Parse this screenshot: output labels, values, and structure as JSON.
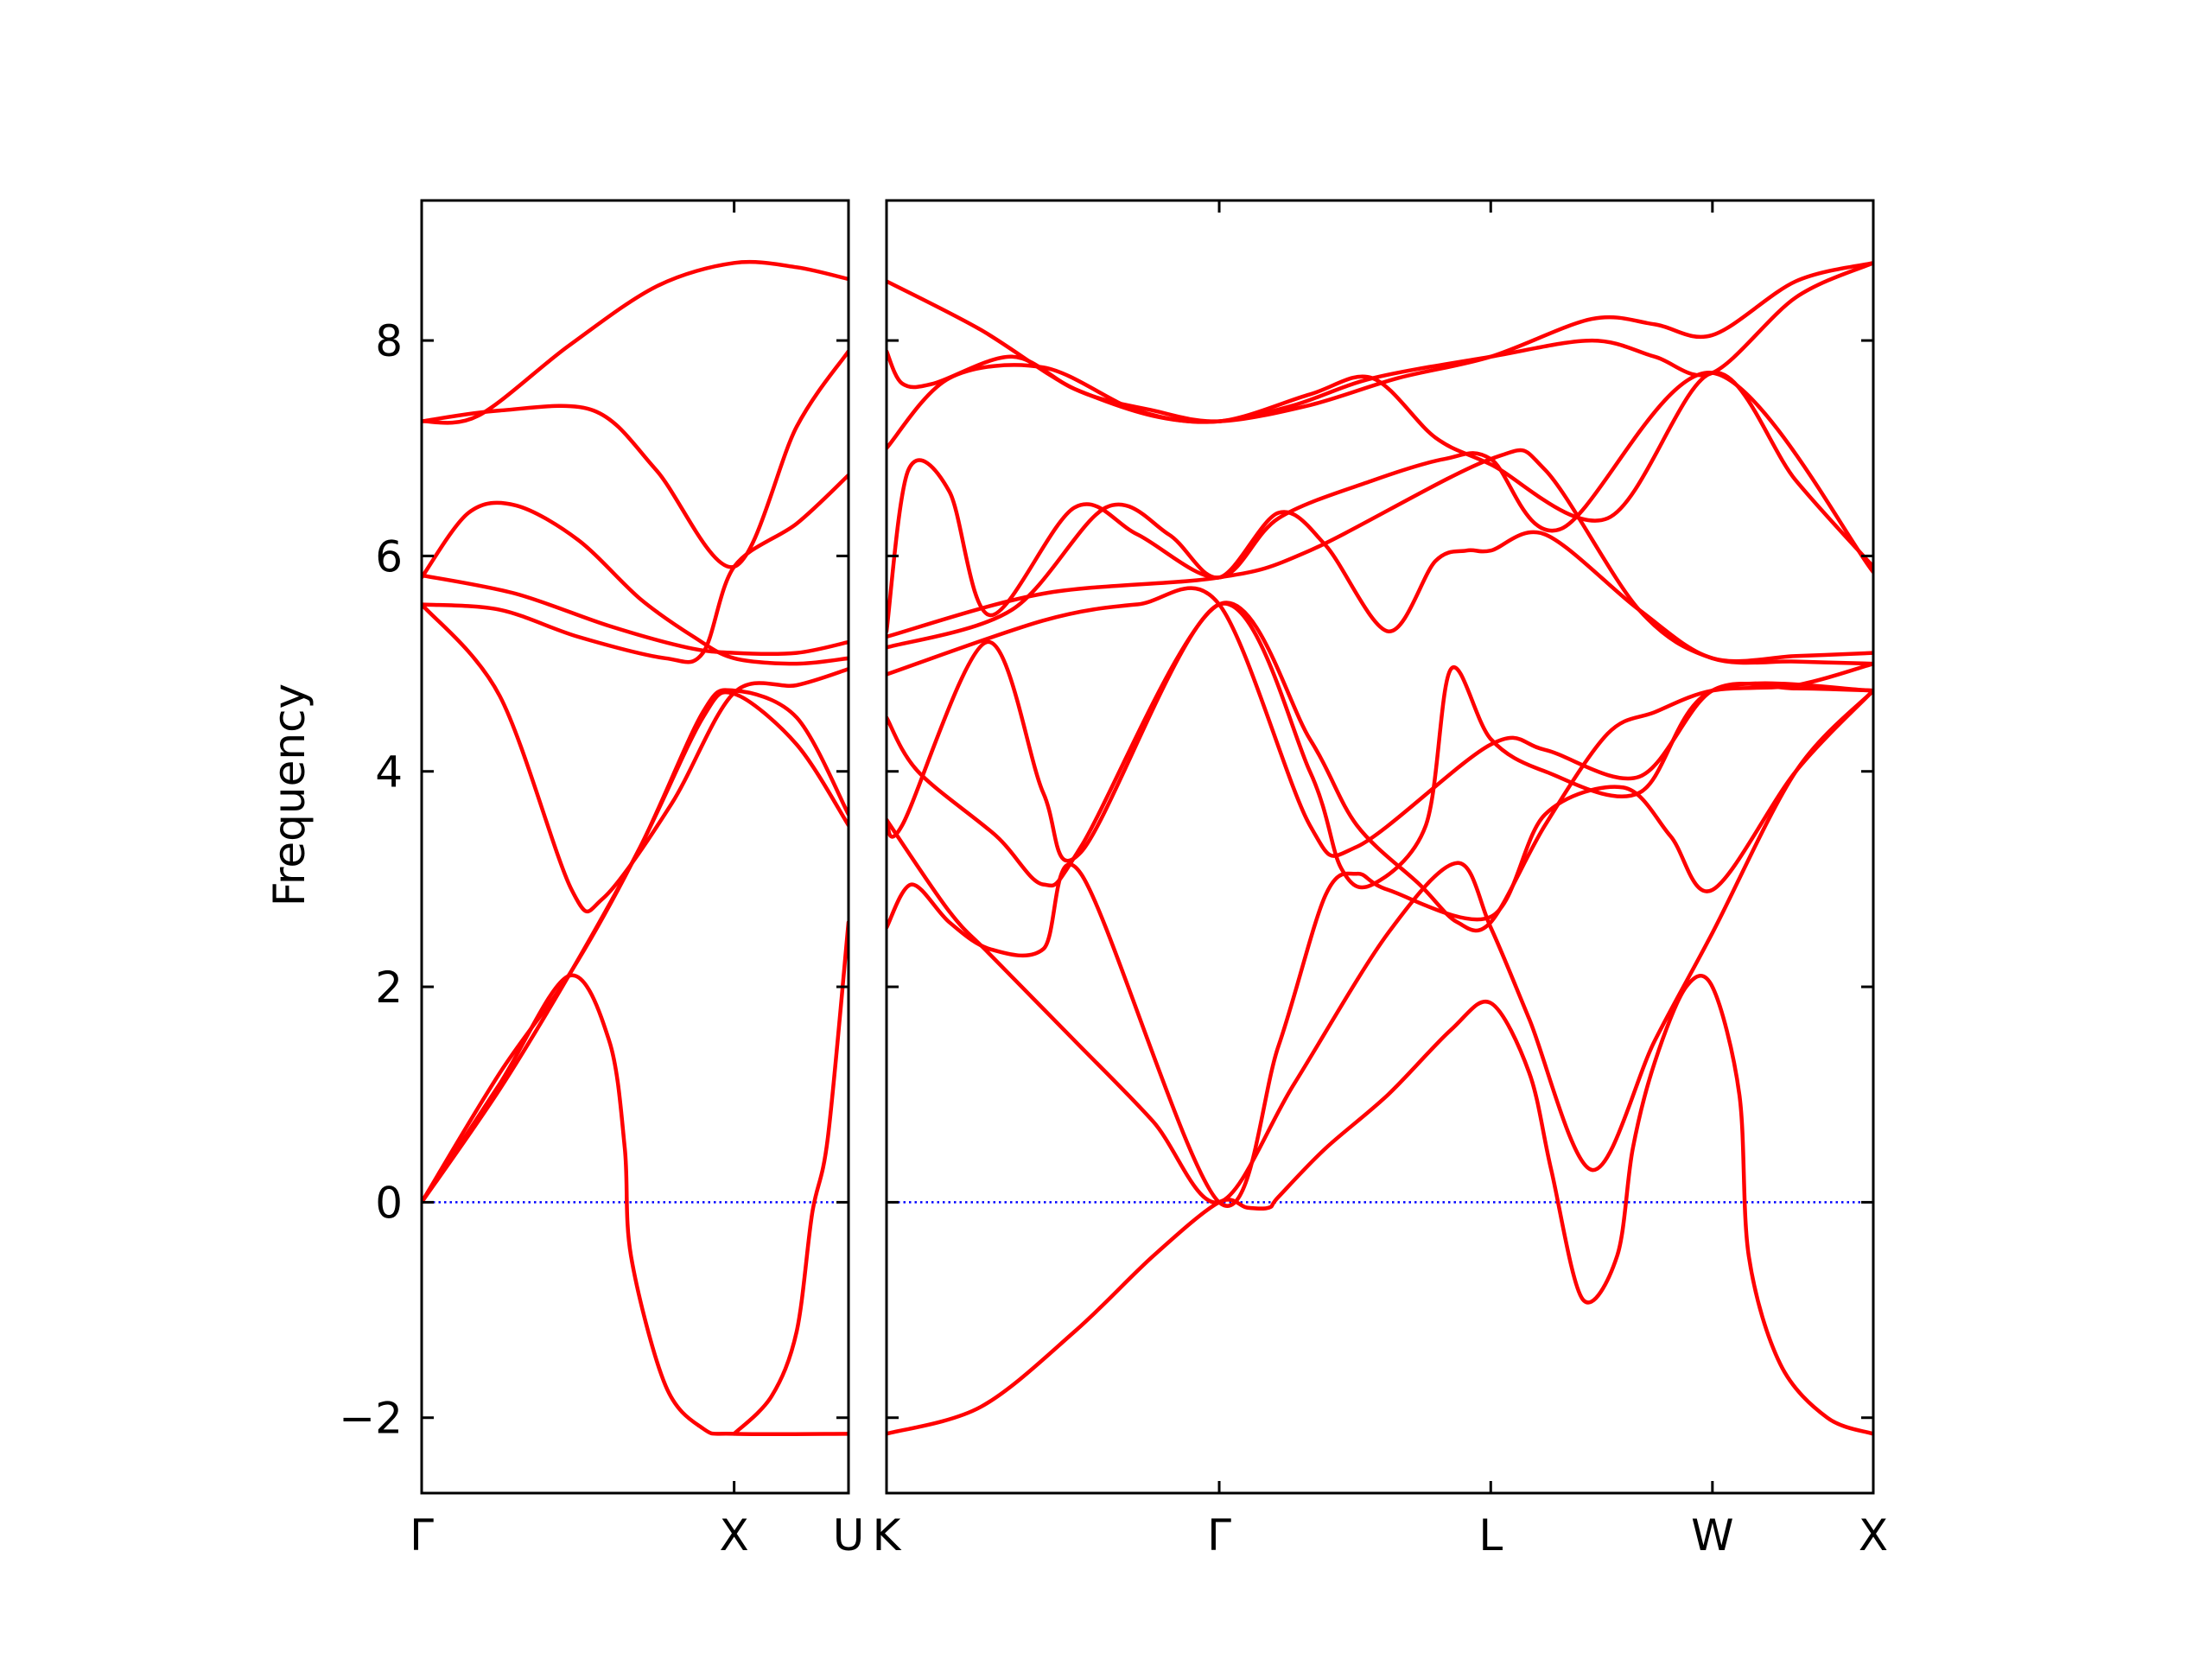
{
  "chart_data": {
    "type": "line",
    "title": "",
    "ylabel": "Frequency",
    "xlabel": "",
    "ylim": [
      -2.7,
      9.3
    ],
    "yticks": [
      -2,
      0,
      2,
      4,
      6,
      8
    ],
    "ytick_labels": [
      "−2",
      "0",
      "2",
      "4",
      "6",
      "8"
    ],
    "grid": false,
    "legend": "none",
    "colors": {
      "bands": "#ff0000",
      "zero_line": "#0000ff",
      "axes": "#000000"
    },
    "zero_line": {
      "y": 0,
      "style": "dotted"
    },
    "panels": [
      {
        "name": "left",
        "x_range": [
          0,
          1.366
        ],
        "ticks": [
          {
            "x": 0,
            "label": "Γ"
          },
          {
            "x": 1.0,
            "label": "X"
          },
          {
            "x": 1.366,
            "label": "U"
          }
        ],
        "series": [
          {
            "x": [
              0,
              0.18,
              0.47,
              0.75,
              1.0,
              1.2,
              1.366
            ],
            "y": [
              7.25,
              7.3,
              7.95,
              8.5,
              8.72,
              8.68,
              8.57
            ]
          },
          {
            "x": [
              0,
              0.25,
              0.55,
              0.75,
              1.0,
              1.2,
              1.366
            ],
            "y": [
              7.25,
              7.35,
              7.35,
              6.8,
              5.9,
              7.2,
              7.9
            ]
          },
          {
            "x": [
              0,
              0.15,
              0.3,
              0.5,
              0.7,
              0.87,
              1.0,
              1.2,
              1.366
            ],
            "y": [
              5.8,
              6.4,
              6.47,
              6.15,
              5.6,
              5.25,
              5.05,
              5.0,
              5.05
            ]
          },
          {
            "x": [
              0,
              0.3,
              0.6,
              0.85,
              1.0,
              1.2,
              1.366
            ],
            "y": [
              5.82,
              5.65,
              5.35,
              5.15,
              5.1,
              5.1,
              5.2
            ]
          },
          {
            "x": [
              0,
              0.25,
              0.5,
              0.78,
              0.9,
              1.0,
              1.2,
              1.366
            ],
            "y": [
              5.55,
              5.5,
              5.25,
              5.05,
              5.1,
              5.9,
              6.3,
              6.75
            ]
          },
          {
            "x": [
              0,
              0.25,
              0.48,
              0.58,
              0.8,
              1.0,
              1.2,
              1.366
            ],
            "y": [
              5.55,
              4.7,
              2.9,
              2.82,
              3.7,
              4.73,
              4.8,
              4.95
            ]
          },
          {
            "x": [
              0,
              0.25,
              0.48,
              0.7,
              0.9,
              1.0,
              1.2,
              1.366
            ],
            "y": [
              0,
              1.2,
              2.15,
              3.3,
              4.55,
              4.75,
              4.5,
              3.6
            ]
          },
          {
            "x": [
              0,
              0.25,
              0.48,
              0.7,
              0.9,
              1.0,
              1.2,
              1.366
            ],
            "y": [
              0,
              1.05,
              2.15,
              3.3,
              4.5,
              4.72,
              4.25,
              3.5
            ]
          },
          {
            "x": [
              0,
              0.25,
              0.47,
              0.6,
              0.65,
              0.67,
              0.78,
              0.9,
              1.0,
              1.366
            ],
            "y": [
              0,
              1.1,
              2.1,
              1.5,
              0.5,
              -0.5,
              -1.7,
              -2.1,
              -2.15,
              -2.15
            ]
          },
          {
            "x": [
              1.0,
              1.12,
              1.2,
              1.25,
              1.3,
              1.366
            ],
            "y": [
              -2.15,
              -1.8,
              -1.2,
              -0.1,
              0.6,
              2.6
            ]
          }
        ]
      },
      {
        "name": "right",
        "x_range": [
          0,
          3.147
        ],
        "ticks": [
          {
            "x": 0,
            "label": "K"
          },
          {
            "x": 1.061,
            "label": "Γ"
          },
          {
            "x": 1.927,
            "label": "L"
          },
          {
            "x": 2.634,
            "label": "W"
          },
          {
            "x": 3.147,
            "label": "X"
          }
        ],
        "series": [
          {
            "x": [
              0,
              0.3,
              0.6,
              0.85,
              1.061,
              1.35,
              1.63,
              1.927,
              2.25,
              2.45,
              2.634,
              2.9,
              3.147
            ],
            "y": [
              8.55,
              8.1,
              7.55,
              7.35,
              7.25,
              7.4,
              7.65,
              7.85,
              8.2,
              8.15,
              8.05,
              8.55,
              8.72
            ]
          },
          {
            "x": [
              0,
              0.05,
              0.15,
              0.4,
              0.6,
              0.85,
              1.061,
              1.3,
              1.55,
              1.927,
              2.25,
              2.45,
              2.634,
              2.9,
              3.147
            ],
            "y": [
              7.9,
              7.6,
              7.6,
              7.85,
              7.55,
              7.3,
              7.25,
              7.4,
              7.65,
              7.85,
              8.0,
              7.85,
              7.7,
              8.4,
              8.72
            ]
          },
          {
            "x": [
              0,
              0.2,
              0.5,
              0.8,
              1.061,
              1.35,
              1.55,
              1.75,
              1.927,
              2.3,
              2.634,
              2.9,
              3.147
            ],
            "y": [
              7.0,
              7.65,
              7.75,
              7.35,
              7.25,
              7.5,
              7.65,
              7.1,
              6.85,
              6.35,
              7.7,
              6.7,
              5.9
            ]
          },
          {
            "x": [
              0,
              0.07,
              0.2,
              0.33,
              0.6,
              0.8,
              1.061,
              1.25,
              1.55,
              1.78,
              1.927,
              2.15,
              2.634,
              3.147
            ],
            "y": [
              5.3,
              6.8,
              6.6,
              5.45,
              6.45,
              6.2,
              5.8,
              6.35,
              6.7,
              6.9,
              6.9,
              6.25,
              7.7,
              5.85
            ]
          },
          {
            "x": [
              0,
              0.4,
              0.7,
              0.9,
              1.061,
              1.25,
              1.4,
              1.6,
              1.75,
              1.85,
              1.927,
              2.1,
              2.4,
              2.634,
              2.9,
              3.147
            ],
            "y": [
              5.15,
              5.5,
              6.45,
              6.2,
              5.8,
              6.4,
              6.1,
              5.3,
              5.95,
              6.05,
              6.05,
              6.2,
              5.5,
              5.05,
              5.07,
              5.1
            ]
          },
          {
            "x": [
              0,
              0.5,
              1.061,
              1.35,
              1.927,
              2.1,
              2.4,
              2.634,
              2.9,
              3.147
            ],
            "y": [
              5.25,
              5.65,
              5.8,
              6.05,
              6.9,
              6.8,
              5.5,
              5.05,
              5.02,
              5.0
            ]
          },
          {
            "x": [
              0,
              0.5,
              0.8,
              1.061,
              1.35,
              1.5,
              1.927,
              2.1,
              2.4,
              2.634,
              2.9,
              3.147
            ],
            "y": [
              4.9,
              5.4,
              5.55,
              5.55,
              3.5,
              3.3,
              4.25,
              4.2,
              3.95,
              4.75,
              4.77,
              4.75
            ]
          },
          {
            "x": [
              0,
              0.05,
              0.32,
              0.5,
              0.62,
              1.061,
              1.35,
              1.45,
              1.55,
              1.72,
              1.8,
              1.927,
              2.1,
              2.4,
              2.634,
              3.147
            ],
            "y": [
              3.55,
              3.5,
              5.2,
              3.8,
              3.25,
              5.55,
              4.0,
              3.1,
              2.95,
              3.5,
              4.95,
              4.3,
              4.0,
              3.8,
              4.75,
              4.75
            ]
          },
          {
            "x": [
              0,
              0.1,
              0.35,
              0.5,
              0.62,
              1.061,
              1.35,
              1.5,
              1.7,
              1.82,
              1.927,
              2.1,
              2.3,
              2.45,
              2.634,
              2.9,
              3.147
            ],
            "y": [
              4.5,
              4.0,
              3.4,
              2.95,
              3.3,
              5.55,
              4.3,
              3.5,
              2.95,
              2.6,
              2.6,
              3.5,
              4.35,
              4.55,
              4.75,
              4.8,
              5.0
            ]
          },
          {
            "x": [
              0,
              0.08,
              0.2,
              0.33,
              0.5,
              0.62,
              1.061,
              1.25,
              1.4,
              1.5,
              1.6,
              1.927,
              2.1,
              2.35,
              2.5,
              2.634,
              2.9,
              3.147
            ],
            "y": [
              2.55,
              2.95,
              2.6,
              2.35,
              2.35,
              3.05,
              0.0,
              1.45,
              2.85,
              3.05,
              2.9,
              2.65,
              3.6,
              3.85,
              3.4,
              2.9,
              4.0,
              4.75
            ]
          },
          {
            "x": [
              0,
              0.2,
              0.33,
              0.6,
              0.85,
              1.061,
              1.3,
              1.6,
              1.82,
              1.927,
              2.05,
              2.25,
              2.45,
              2.634,
              2.9,
              3.147
            ],
            "y": [
              3.55,
              2.7,
              2.3,
              1.5,
              0.75,
              0.0,
              1.1,
              2.5,
              3.15,
              2.55,
              1.7,
              0.3,
              1.5,
              2.5,
              4.0,
              4.75
            ]
          },
          {
            "x": [
              0,
              0.3,
              0.6,
              0.85,
              1.061,
              1.15,
              1.22,
              1.25,
              1.4,
              1.6,
              1.8,
              1.927,
              2.05,
              2.12,
              2.22,
              2.33,
              2.38,
              2.45,
              2.55,
              2.634,
              2.72,
              2.75,
              2.85,
              3.0,
              3.147
            ],
            "y": [
              -2.15,
              -1.9,
              -1.2,
              -0.5,
              0.0,
              -0.05,
              -0.05,
              0.05,
              0.5,
              1.0,
              1.6,
              1.85,
              1.2,
              0.3,
              -0.9,
              -0.5,
              0.5,
              1.3,
              2.0,
              2.0,
              1.0,
              -0.5,
              -1.5,
              -2.0,
              -2.15
            ]
          }
        ]
      }
    ]
  }
}
